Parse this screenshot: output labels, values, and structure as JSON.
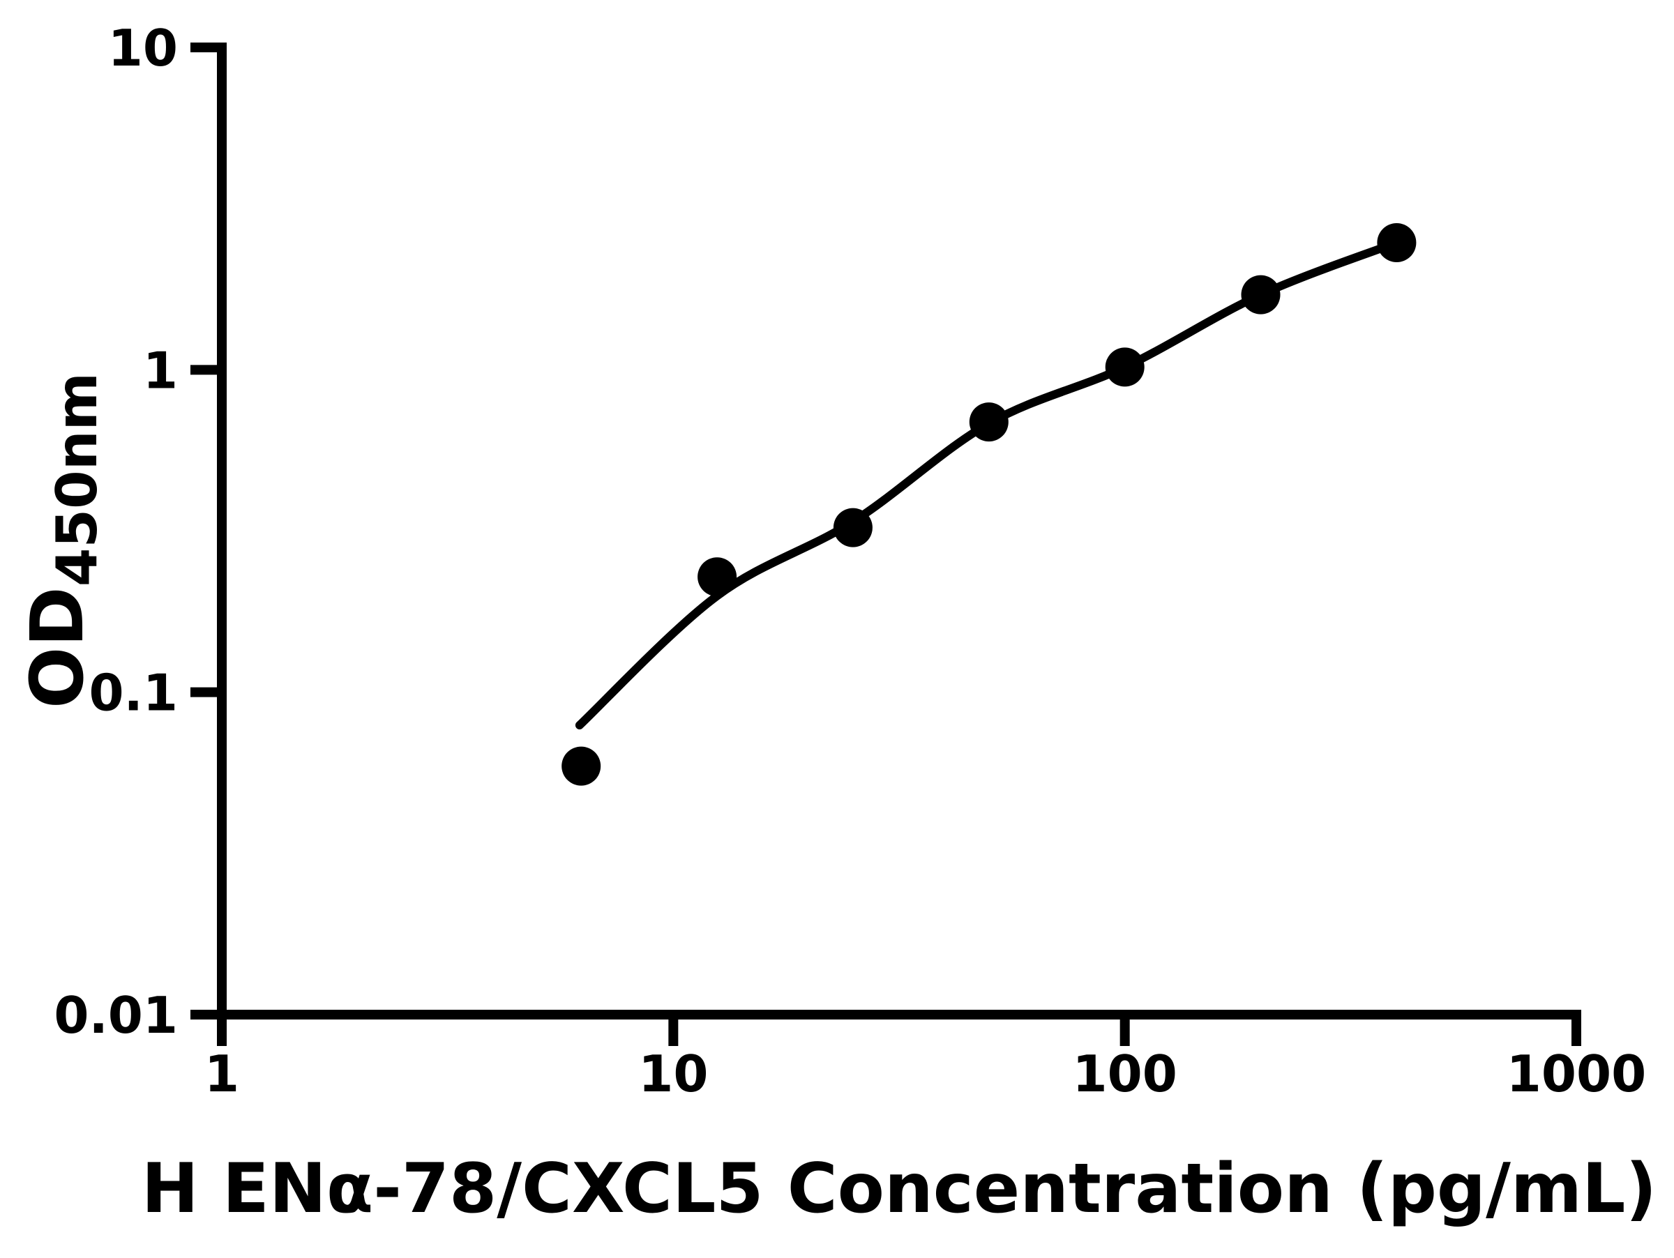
{
  "chart_data": {
    "type": "scatter",
    "title": "",
    "xlabel": "H ENα-78/CXCL5 Concentration (pg/mL)",
    "ylabel_main": "OD",
    "ylabel_sub": "450nm",
    "x_scale": "log",
    "y_scale": "log",
    "xlim": [
      1,
      1000
    ],
    "ylim": [
      0.01,
      10
    ],
    "x_tick_values": [
      1,
      10,
      100,
      1000
    ],
    "x_tick_labels": [
      "1",
      "10",
      "100",
      "1000"
    ],
    "y_tick_values": [
      10,
      1,
      0.1,
      0.01
    ],
    "y_tick_labels": [
      "10",
      "1",
      "0.1",
      "0.01"
    ],
    "grid": false,
    "legend": false,
    "series": [
      {
        "name": "standard-points",
        "marker": "circle",
        "color": "#000000",
        "x": [
          6.25,
          12.5,
          25,
          50,
          100,
          200,
          400
        ],
        "y": [
          0.059,
          0.228,
          0.324,
          0.689,
          1.02,
          1.71,
          2.48
        ]
      }
    ],
    "fit_curve": {
      "name": "fitted-standard-curve",
      "color": "#000000",
      "x": [
        6.2,
        12.5,
        25,
        50,
        100,
        200,
        400
      ],
      "y": [
        0.079,
        0.199,
        0.338,
        0.682,
        1.02,
        1.71,
        2.48
      ]
    },
    "colors": {
      "axis": "#000000",
      "text": "#000000",
      "background": "#ffffff"
    }
  }
}
